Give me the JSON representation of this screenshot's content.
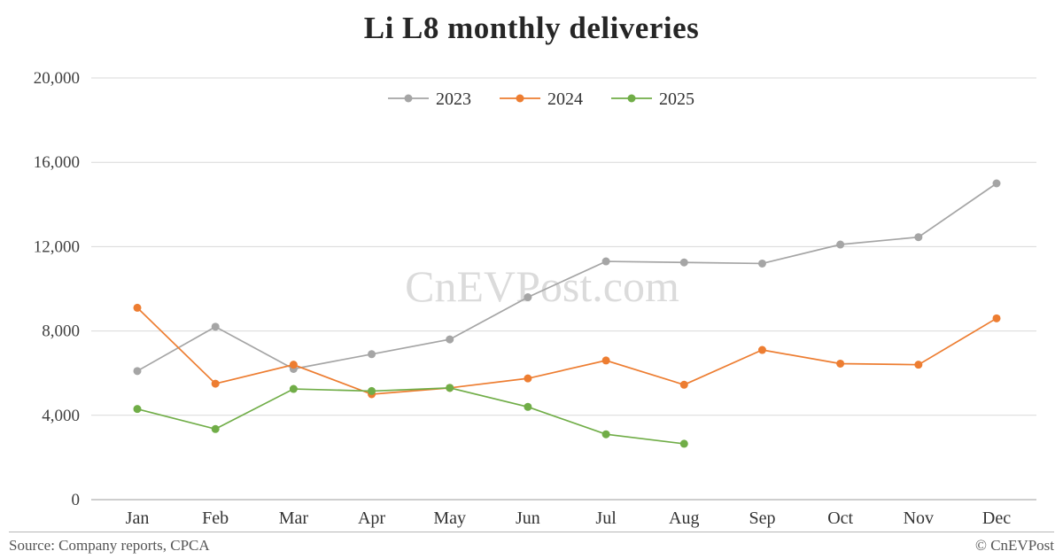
{
  "title": "Li L8 monthly deliveries",
  "watermark": "CnEVPost.com",
  "footer": {
    "source": "Source: Company reports, CPCA",
    "copyright": "© CnEVPost"
  },
  "chart_data": {
    "type": "line",
    "title": "Li L8 monthly deliveries",
    "categories": [
      "Jan",
      "Feb",
      "Mar",
      "Apr",
      "May",
      "Jun",
      "Jul",
      "Aug",
      "Sep",
      "Oct",
      "Nov",
      "Dec"
    ],
    "series": [
      {
        "name": "2023",
        "color": "#a5a5a5",
        "values": [
          6100,
          8200,
          6200,
          6900,
          7600,
          9600,
          11300,
          11250,
          11200,
          12100,
          12450,
          15000
        ]
      },
      {
        "name": "2024",
        "color": "#ed7d31",
        "values": [
          9100,
          5500,
          6400,
          5000,
          5300,
          5750,
          6600,
          5450,
          7100,
          6450,
          6400,
          8600
        ]
      },
      {
        "name": "2025",
        "color": "#70ad47",
        "values": [
          4300,
          3350,
          5250,
          5150,
          5300,
          4400,
          3100,
          2650
        ]
      }
    ],
    "xlabel": "",
    "ylabel": "",
    "ylim": [
      0,
      20000
    ],
    "yticks": [
      0,
      4000,
      8000,
      12000,
      16000,
      20000
    ],
    "grid": true,
    "legend_position": "top-center"
  }
}
